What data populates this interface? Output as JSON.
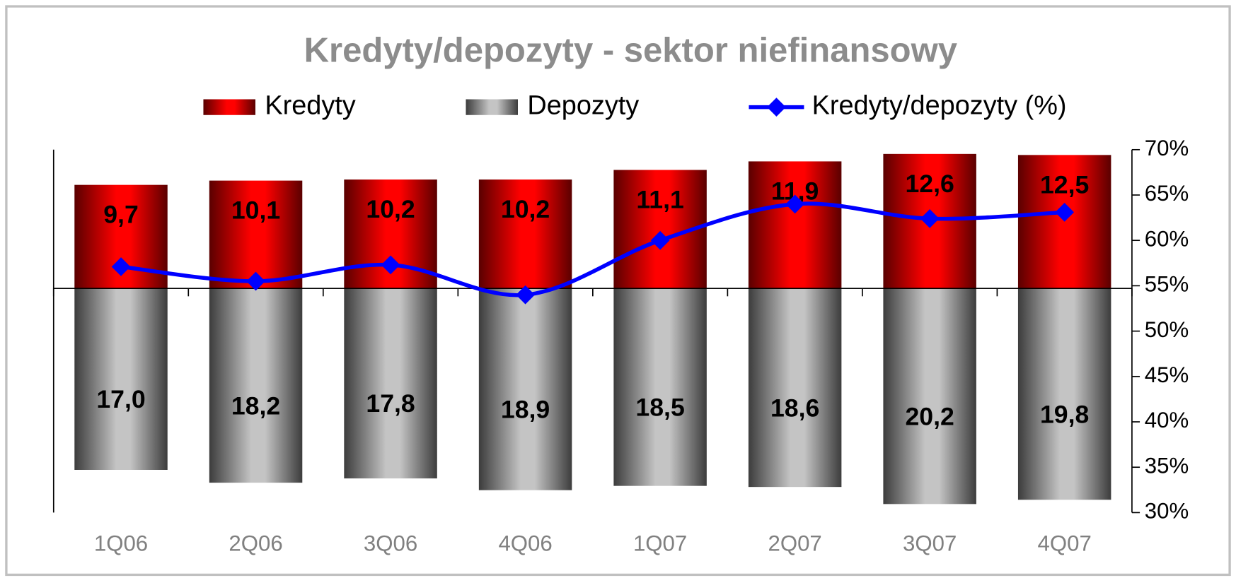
{
  "chart_data": {
    "type": "bar-line",
    "title": "Kredyty/depozyty - sektor niefinansowy",
    "categories": [
      "1Q06",
      "2Q06",
      "3Q06",
      "4Q06",
      "1Q07",
      "2Q07",
      "3Q07",
      "4Q07"
    ],
    "series": [
      {
        "name": "Kredyty",
        "color": "#ff0000",
        "values": [
          9.7,
          10.1,
          10.2,
          10.2,
          11.1,
          11.9,
          12.6,
          12.5
        ],
        "value_labels": [
          "9,7",
          "10,1",
          "10,2",
          "10,2",
          "11,1",
          "11,9",
          "12,6",
          "12,5"
        ]
      },
      {
        "name": "Depozyty",
        "color": "#b4b4b4",
        "values": [
          17.0,
          18.2,
          17.8,
          18.9,
          18.5,
          18.6,
          20.2,
          19.8
        ],
        "value_labels": [
          "17,0",
          "18,2",
          "17,8",
          "18,9",
          "18,5",
          "18,6",
          "20,2",
          "19,8"
        ]
      },
      {
        "name": "Kredyty/depozyty (%)",
        "color": "#0000ff",
        "axis": "y2",
        "type": "line",
        "values": [
          57.1,
          55.5,
          57.3,
          54.0,
          60.0,
          64.0,
          62.4,
          63.1
        ]
      }
    ],
    "ylim": [
      -21,
      13
    ],
    "y2lim": [
      30,
      70
    ],
    "y2ticks": [
      {
        "value": 30,
        "label": "30%"
      },
      {
        "value": 35,
        "label": "35%"
      },
      {
        "value": 40,
        "label": "40%"
      },
      {
        "value": 45,
        "label": "45%"
      },
      {
        "value": 50,
        "label": "50%"
      },
      {
        "value": 55,
        "label": "55%"
      },
      {
        "value": 60,
        "label": "60%"
      },
      {
        "value": 65,
        "label": "65%"
      },
      {
        "value": 70,
        "label": "70%"
      }
    ],
    "legend": "top"
  }
}
